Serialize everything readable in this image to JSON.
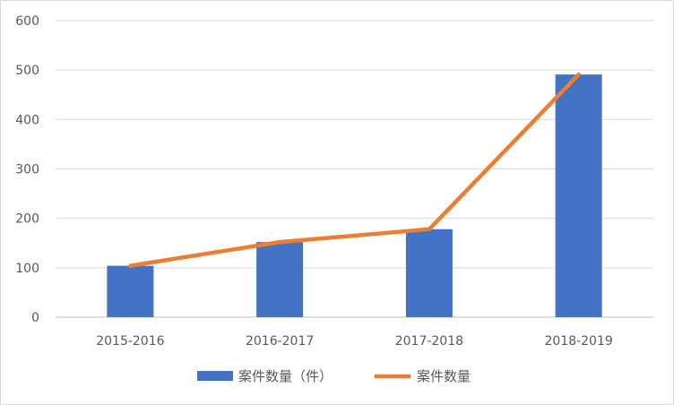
{
  "chart_data": {
    "type": "bar",
    "categories": [
      "2015-2016",
      "2016-2017",
      "2017-2018",
      "2018-2019"
    ],
    "series": [
      {
        "name": "案件数量（件）",
        "type": "bar",
        "color": "#4472c4",
        "values": [
          104,
          152,
          178,
          491
        ]
      },
      {
        "name": "案件数量",
        "type": "line",
        "color": "#ed7d31",
        "values": [
          104,
          152,
          178,
          491
        ]
      }
    ],
    "ylim": [
      0,
      600
    ],
    "yticks": [
      0,
      100,
      200,
      300,
      400,
      500,
      600
    ],
    "grid": true,
    "legend": "bottom"
  }
}
